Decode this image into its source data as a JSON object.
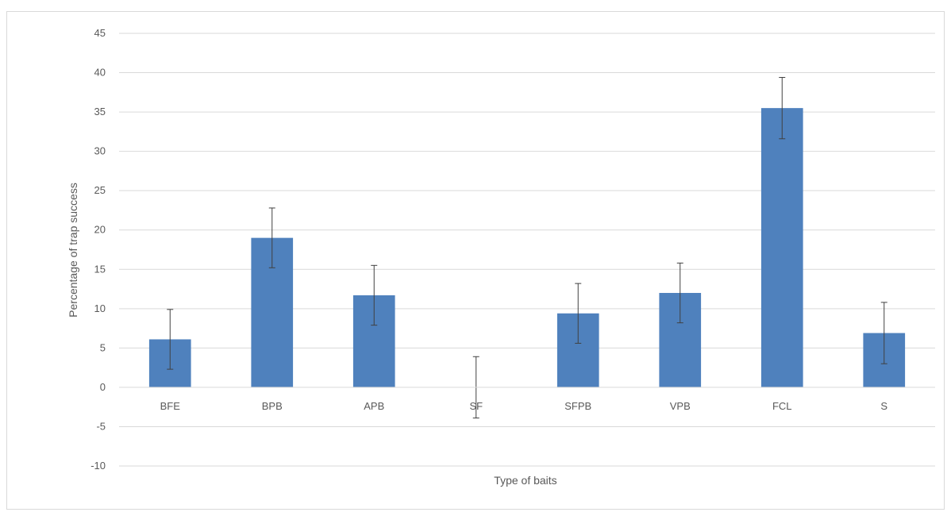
{
  "chart_data": {
    "type": "bar",
    "title": "",
    "xlabel": "Type of baits",
    "ylabel": "Percentage of trap success",
    "categories": [
      "BFE",
      "BPB",
      "APB",
      "SF",
      "SFPB",
      "VPB",
      "FCL",
      "S"
    ],
    "series": [
      {
        "values": [
          6.1,
          19.0,
          11.7,
          0,
          9.4,
          12.0,
          35.5,
          6.9
        ],
        "errors": [
          3.8,
          3.8,
          3.8,
          3.9,
          3.8,
          3.8,
          3.9,
          3.9
        ]
      }
    ],
    "ylim": [
      -10,
      45
    ],
    "yticks": [
      "-10",
      "-5",
      "0",
      "5",
      "10",
      "15",
      "20",
      "25",
      "30",
      "35",
      "40",
      "45"
    ],
    "grid": true,
    "legend": "none",
    "colors": {
      "bar": "#4f81bd",
      "grid": "#d9d9d9",
      "error_bar": "#404040",
      "text": "#595959"
    }
  }
}
